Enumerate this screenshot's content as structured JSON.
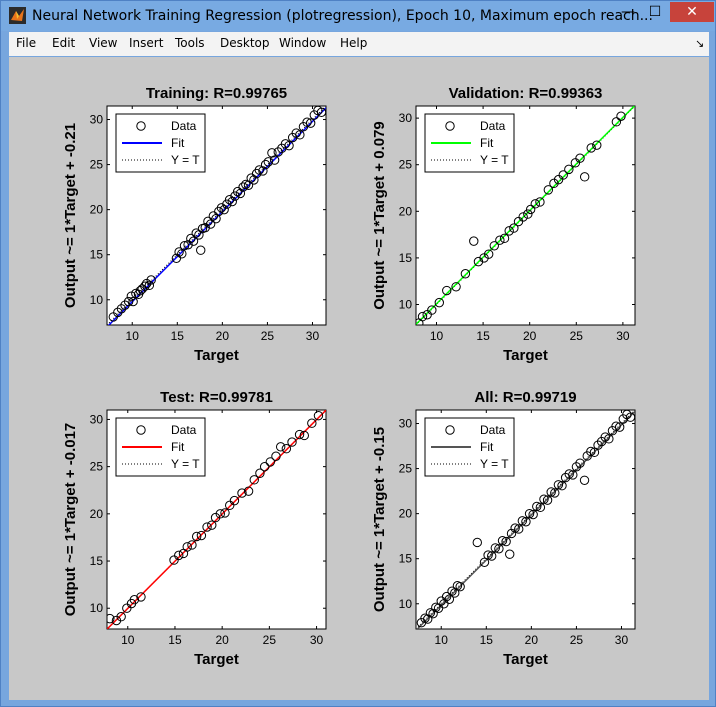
{
  "window": {
    "title": "Neural Network Training Regression (plotregression), Epoch 10, Maximum epoch reach...",
    "minimize_glyph": "—",
    "maximize_glyph": "☐",
    "close_glyph": "✕",
    "app_icon": "matlab-icon"
  },
  "menu": {
    "items": [
      "File",
      "Edit",
      "View",
      "Insert",
      "Tools",
      "Desktop",
      "Window",
      "Help"
    ],
    "dock_icon": "↘"
  },
  "legend_labels": {
    "data": "Data",
    "fit": "Fit",
    "yt": "Y = T"
  },
  "colors": {
    "axes_bg": "#ffffff",
    "figure_bg": "#c8c8c8"
  },
  "chart_data": [
    {
      "type": "scatter",
      "title": "Training: R=0.99765",
      "xlabel": "Target",
      "ylabel": "Output ~= 1*Target + -0.21",
      "xlim": [
        7.2,
        31.5
      ],
      "ylim": [
        7.2,
        31.5
      ],
      "xticks": [
        10,
        15,
        20,
        25,
        30
      ],
      "yticks": [
        10,
        15,
        20,
        25,
        30
      ],
      "fit_color": "#0000ff",
      "fit": {
        "slope": 1,
        "intercept": -0.21
      },
      "legend": [
        "Data",
        "Fit",
        "Y = T"
      ],
      "legend_position": "top-left",
      "points": [
        [
          7.9,
          8.1
        ],
        [
          8.4,
          8.6
        ],
        [
          8.8,
          9.0
        ],
        [
          9.2,
          9.4
        ],
        [
          9.6,
          9.8
        ],
        [
          9.9,
          10.4
        ],
        [
          10.1,
          9.8
        ],
        [
          10.4,
          10.7
        ],
        [
          10.7,
          10.6
        ],
        [
          10.9,
          11.0
        ],
        [
          11.1,
          11.2
        ],
        [
          11.4,
          11.5
        ],
        [
          11.6,
          11.8
        ],
        [
          11.9,
          11.6
        ],
        [
          12.1,
          12.2
        ],
        [
          14.9,
          14.6
        ],
        [
          15.2,
          15.3
        ],
        [
          15.5,
          15.1
        ],
        [
          15.8,
          16.0
        ],
        [
          16.2,
          16.1
        ],
        [
          16.5,
          16.8
        ],
        [
          16.8,
          16.5
        ],
        [
          17.1,
          17.4
        ],
        [
          17.4,
          17.2
        ],
        [
          17.6,
          15.5
        ],
        [
          17.8,
          17.9
        ],
        [
          18.1,
          18.0
        ],
        [
          18.4,
          18.7
        ],
        [
          18.7,
          18.4
        ],
        [
          19.0,
          19.3
        ],
        [
          19.3,
          19.0
        ],
        [
          19.6,
          19.8
        ],
        [
          19.9,
          20.2
        ],
        [
          20.2,
          20.0
        ],
        [
          20.5,
          20.6
        ],
        [
          20.8,
          21.1
        ],
        [
          21.1,
          20.9
        ],
        [
          21.4,
          21.5
        ],
        [
          21.7,
          22.0
        ],
        [
          22.0,
          21.8
        ],
        [
          22.3,
          22.5
        ],
        [
          22.6,
          22.8
        ],
        [
          22.9,
          22.7
        ],
        [
          23.2,
          23.5
        ],
        [
          23.5,
          23.3
        ],
        [
          23.8,
          24.0
        ],
        [
          24.1,
          24.4
        ],
        [
          24.5,
          24.3
        ],
        [
          24.8,
          25.0
        ],
        [
          25.1,
          25.3
        ],
        [
          25.5,
          26.3
        ],
        [
          25.8,
          25.5
        ],
        [
          26.2,
          26.4
        ],
        [
          26.6,
          26.8
        ],
        [
          27.0,
          27.3
        ],
        [
          27.4,
          27.1
        ],
        [
          27.8,
          28.0
        ],
        [
          28.2,
          28.5
        ],
        [
          28.6,
          28.3
        ],
        [
          29.0,
          29.2
        ],
        [
          29.4,
          29.7
        ],
        [
          29.8,
          29.6
        ],
        [
          30.2,
          30.5
        ],
        [
          30.6,
          31.0
        ],
        [
          31.0,
          30.8
        ]
      ]
    },
    {
      "type": "scatter",
      "title": "Validation: R=0.99363",
      "xlabel": "Target",
      "ylabel": "Output ~= 1*Target + 0.079",
      "xlim": [
        7.8,
        31.3
      ],
      "ylim": [
        7.8,
        31.3
      ],
      "xticks": [
        10,
        15,
        20,
        25,
        30
      ],
      "yticks": [
        10,
        15,
        20,
        25,
        30
      ],
      "fit_color": "#00ff00",
      "fit": {
        "slope": 1,
        "intercept": 0.079
      },
      "legend": [
        "Data",
        "Fit",
        "Y = T"
      ],
      "legend_position": "top-left",
      "points": [
        [
          8.1,
          8.0
        ],
        [
          8.5,
          8.7
        ],
        [
          9.0,
          8.9
        ],
        [
          9.5,
          9.4
        ],
        [
          10.3,
          10.2
        ],
        [
          11.1,
          11.5
        ],
        [
          12.1,
          11.9
        ],
        [
          13.1,
          13.3
        ],
        [
          14.0,
          16.8
        ],
        [
          14.5,
          14.6
        ],
        [
          15.1,
          15.0
        ],
        [
          15.6,
          15.4
        ],
        [
          16.2,
          16.3
        ],
        [
          16.8,
          16.9
        ],
        [
          17.3,
          17.1
        ],
        [
          17.8,
          17.9
        ],
        [
          18.3,
          18.2
        ],
        [
          18.8,
          18.9
        ],
        [
          19.3,
          19.4
        ],
        [
          19.8,
          19.7
        ],
        [
          20.1,
          20.2
        ],
        [
          20.6,
          20.8
        ],
        [
          21.1,
          21.0
        ],
        [
          22.0,
          22.3
        ],
        [
          22.6,
          23.0
        ],
        [
          23.1,
          23.4
        ],
        [
          23.6,
          23.9
        ],
        [
          24.2,
          24.5
        ],
        [
          24.9,
          25.2
        ],
        [
          25.4,
          25.7
        ],
        [
          25.9,
          23.7
        ],
        [
          26.6,
          26.8
        ],
        [
          27.2,
          27.1
        ],
        [
          29.3,
          29.6
        ],
        [
          29.8,
          30.2
        ]
      ]
    },
    {
      "type": "scatter",
      "title": "Test: R=0.99781",
      "xlabel": "Target",
      "ylabel": "Output ~= 1*Target + -0.017",
      "xlim": [
        7.8,
        31.0
      ],
      "ylim": [
        7.8,
        31.0
      ],
      "xticks": [
        10,
        15,
        20,
        25,
        30
      ],
      "yticks": [
        10,
        15,
        20,
        25,
        30
      ],
      "fit_color": "#ff0000",
      "fit": {
        "slope": 1,
        "intercept": -0.017
      },
      "legend": [
        "Data",
        "Fit",
        "Y = T"
      ],
      "legend_position": "top-left",
      "points": [
        [
          8.1,
          8.9
        ],
        [
          8.8,
          8.7
        ],
        [
          9.3,
          9.1
        ],
        [
          9.9,
          10.0
        ],
        [
          10.4,
          10.5
        ],
        [
          10.7,
          10.9
        ],
        [
          11.4,
          11.2
        ],
        [
          14.9,
          15.1
        ],
        [
          15.4,
          15.6
        ],
        [
          15.9,
          15.8
        ],
        [
          16.3,
          16.5
        ],
        [
          16.8,
          16.7
        ],
        [
          17.3,
          17.6
        ],
        [
          17.8,
          17.7
        ],
        [
          18.4,
          18.6
        ],
        [
          18.9,
          18.8
        ],
        [
          19.3,
          19.6
        ],
        [
          19.8,
          20.0
        ],
        [
          20.3,
          20.1
        ],
        [
          20.8,
          20.9
        ],
        [
          21.3,
          21.4
        ],
        [
          22.1,
          22.2
        ],
        [
          22.8,
          22.4
        ],
        [
          23.4,
          23.6
        ],
        [
          24.0,
          24.3
        ],
        [
          24.5,
          25.0
        ],
        [
          25.1,
          25.5
        ],
        [
          25.7,
          26.1
        ],
        [
          26.2,
          27.1
        ],
        [
          26.8,
          26.9
        ],
        [
          27.4,
          27.6
        ],
        [
          28.2,
          28.4
        ],
        [
          28.7,
          28.3
        ],
        [
          29.5,
          29.6
        ],
        [
          30.2,
          30.4
        ]
      ]
    },
    {
      "type": "scatter",
      "title": "All: R=0.99719",
      "xlabel": "Target",
      "ylabel": "Output ~= 1*Target + -0.15",
      "xlim": [
        7.2,
        31.5
      ],
      "ylim": [
        7.2,
        31.5
      ],
      "xticks": [
        10,
        15,
        20,
        25,
        30
      ],
      "yticks": [
        10,
        15,
        20,
        25,
        30
      ],
      "fit_color": "#555555",
      "fit": {
        "slope": 1,
        "intercept": -0.15
      },
      "legend": [
        "Data",
        "Fit",
        "Y = T"
      ],
      "legend_position": "top-left",
      "points": [
        [
          7.8,
          7.9
        ],
        [
          8.2,
          8.4
        ],
        [
          8.5,
          8.3
        ],
        [
          8.8,
          9.0
        ],
        [
          9.1,
          8.9
        ],
        [
          9.4,
          9.6
        ],
        [
          9.7,
          9.5
        ],
        [
          10.0,
          10.3
        ],
        [
          10.3,
          10.0
        ],
        [
          10.6,
          10.8
        ],
        [
          10.9,
          10.5
        ],
        [
          11.2,
          11.4
        ],
        [
          11.5,
          11.2
        ],
        [
          11.8,
          12.0
        ],
        [
          12.1,
          11.9
        ],
        [
          14.0,
          16.8
        ],
        [
          14.8,
          14.6
        ],
        [
          15.2,
          15.4
        ],
        [
          15.6,
          15.3
        ],
        [
          16.0,
          16.2
        ],
        [
          16.4,
          16.1
        ],
        [
          16.8,
          17.0
        ],
        [
          17.2,
          16.9
        ],
        [
          17.6,
          15.5
        ],
        [
          17.8,
          17.8
        ],
        [
          18.2,
          18.4
        ],
        [
          18.6,
          18.3
        ],
        [
          19.0,
          19.2
        ],
        [
          19.4,
          19.1
        ],
        [
          19.8,
          20.0
        ],
        [
          20.2,
          19.9
        ],
        [
          20.6,
          20.8
        ],
        [
          21.0,
          20.7
        ],
        [
          21.4,
          21.6
        ],
        [
          21.8,
          21.5
        ],
        [
          22.2,
          22.4
        ],
        [
          22.6,
          22.3
        ],
        [
          23.0,
          23.2
        ],
        [
          23.4,
          23.1
        ],
        [
          23.8,
          24.0
        ],
        [
          24.2,
          24.4
        ],
        [
          24.6,
          24.3
        ],
        [
          25.0,
          25.2
        ],
        [
          25.4,
          25.6
        ],
        [
          25.9,
          23.7
        ],
        [
          26.2,
          26.4
        ],
        [
          26.6,
          26.9
        ],
        [
          27.0,
          26.8
        ],
        [
          27.4,
          27.6
        ],
        [
          27.8,
          28.0
        ],
        [
          28.2,
          28.5
        ],
        [
          28.6,
          28.3
        ],
        [
          29.0,
          29.2
        ],
        [
          29.4,
          29.7
        ],
        [
          29.8,
          29.6
        ],
        [
          30.2,
          30.5
        ],
        [
          30.6,
          31.0
        ],
        [
          31.0,
          30.7
        ]
      ]
    }
  ]
}
